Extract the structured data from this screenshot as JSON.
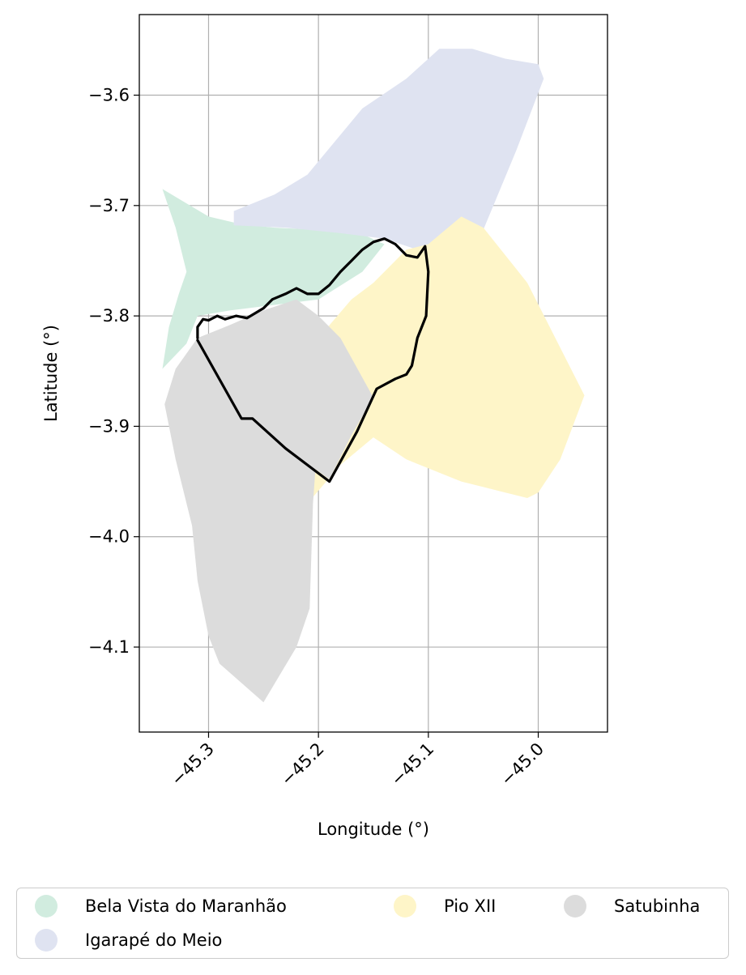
{
  "chart_data": {
    "type": "map",
    "xlabel": "Longitude (°)",
    "ylabel": "Latitude (°)",
    "xlim": [
      -45.363,
      -44.937
    ],
    "ylim": [
      -4.177,
      -3.527
    ],
    "xticks": [
      {
        "value": -45.3,
        "label": "−45.3"
      },
      {
        "value": -45.2,
        "label": "−45.2"
      },
      {
        "value": -45.1,
        "label": "−45.1"
      },
      {
        "value": -45.0,
        "label": "−45.0"
      }
    ],
    "yticks": [
      {
        "value": -3.6,
        "label": "−3.6"
      },
      {
        "value": -3.7,
        "label": "−3.7"
      },
      {
        "value": -3.8,
        "label": "−3.8"
      },
      {
        "value": -3.9,
        "label": "−3.9"
      },
      {
        "value": -4.0,
        "label": "−4.0"
      },
      {
        "value": -4.1,
        "label": "−4.1"
      }
    ],
    "grid": true,
    "legend_position": "bottom",
    "regions": [
      {
        "name": "Bela Vista do Maranhão",
        "color": "#d1ecdf",
        "outline": [
          [
            -45.342,
            -3.685
          ],
          [
            -45.3,
            -3.71
          ],
          [
            -45.27,
            -3.717
          ],
          [
            -45.24,
            -3.72
          ],
          [
            -45.2,
            -3.722
          ],
          [
            -45.16,
            -3.726
          ],
          [
            -45.14,
            -3.735
          ],
          [
            -45.16,
            -3.76
          ],
          [
            -45.2,
            -3.785
          ],
          [
            -45.24,
            -3.79
          ],
          [
            -45.28,
            -3.795
          ],
          [
            -45.31,
            -3.8
          ],
          [
            -45.32,
            -3.825
          ],
          [
            -45.342,
            -3.848
          ],
          [
            -45.336,
            -3.81
          ],
          [
            -45.327,
            -3.78
          ],
          [
            -45.32,
            -3.76
          ],
          [
            -45.33,
            -3.72
          ]
        ]
      },
      {
        "name": "Igarapé do Meio",
        "color": "#dfe3f1",
        "outline": [
          [
            -45.277,
            -3.705
          ],
          [
            -45.24,
            -3.69
          ],
          [
            -45.21,
            -3.672
          ],
          [
            -45.19,
            -3.648
          ],
          [
            -45.16,
            -3.612
          ],
          [
            -45.12,
            -3.585
          ],
          [
            -45.09,
            -3.558
          ],
          [
            -45.06,
            -3.558
          ],
          [
            -45.03,
            -3.567
          ],
          [
            -45.0,
            -3.572
          ],
          [
            -44.995,
            -3.585
          ],
          [
            -45.02,
            -3.65
          ],
          [
            -45.05,
            -3.722
          ],
          [
            -45.08,
            -3.728
          ],
          [
            -45.11,
            -3.74
          ],
          [
            -45.14,
            -3.73
          ],
          [
            -45.18,
            -3.725
          ],
          [
            -45.23,
            -3.72
          ],
          [
            -45.277,
            -3.718
          ]
        ]
      },
      {
        "name": "Pio XII",
        "color": "#fef5c8",
        "outline": [
          [
            -45.1,
            -3.735
          ],
          [
            -45.07,
            -3.71
          ],
          [
            -45.05,
            -3.72
          ],
          [
            -45.01,
            -3.77
          ],
          [
            -44.958,
            -3.872
          ],
          [
            -44.98,
            -3.93
          ],
          [
            -45.0,
            -3.96
          ],
          [
            -45.01,
            -3.965
          ],
          [
            -45.03,
            -3.96
          ],
          [
            -45.05,
            -3.955
          ],
          [
            -45.07,
            -3.95
          ],
          [
            -45.095,
            -3.94
          ],
          [
            -45.12,
            -3.93
          ],
          [
            -45.15,
            -3.91
          ],
          [
            -45.18,
            -3.935
          ],
          [
            -45.21,
            -3.97
          ],
          [
            -45.208,
            -4.03
          ],
          [
            -45.218,
            -4.03
          ],
          [
            -45.2,
            -3.82
          ],
          [
            -45.17,
            -3.785
          ],
          [
            -45.15,
            -3.77
          ],
          [
            -45.12,
            -3.74
          ]
        ]
      },
      {
        "name": "Satubinha",
        "color": "#dcdcdc",
        "outline": [
          [
            -45.31,
            -3.82
          ],
          [
            -45.29,
            -3.86
          ],
          [
            -45.26,
            -3.893
          ],
          [
            -45.24,
            -3.912
          ],
          [
            -45.19,
            -3.948
          ],
          [
            -45.17,
            -3.908
          ],
          [
            -45.15,
            -3.874
          ],
          [
            -45.18,
            -3.82
          ],
          [
            -45.2,
            -3.8
          ],
          [
            -45.22,
            -3.785
          ],
          [
            -45.25,
            -3.795
          ],
          [
            -45.28,
            -3.808
          ],
          [
            -45.31,
            -3.82
          ],
          [
            -45.33,
            -3.848
          ],
          [
            -45.34,
            -3.88
          ],
          [
            -45.33,
            -3.93
          ],
          [
            -45.315,
            -3.99
          ],
          [
            -45.31,
            -4.04
          ],
          [
            -45.3,
            -4.09
          ],
          [
            -45.29,
            -4.115
          ],
          [
            -45.25,
            -4.15
          ],
          [
            -45.22,
            -4.1
          ],
          [
            -45.208,
            -4.065
          ],
          [
            -45.205,
            -3.97
          ],
          [
            -45.2,
            -3.9
          ],
          [
            -45.2,
            -3.82
          ]
        ]
      }
    ],
    "boundary": {
      "color": "#000000",
      "path": [
        [
          -45.31,
          -3.82
        ],
        [
          -45.31,
          -3.81
        ],
        [
          -45.305,
          -3.803
        ],
        [
          -45.3,
          -3.804
        ],
        [
          -45.292,
          -3.8
        ],
        [
          -45.285,
          -3.803
        ],
        [
          -45.275,
          -3.8
        ],
        [
          -45.265,
          -3.802
        ],
        [
          -45.25,
          -3.793
        ],
        [
          -45.242,
          -3.785
        ],
        [
          -45.23,
          -3.78
        ],
        [
          -45.22,
          -3.775
        ],
        [
          -45.21,
          -3.78
        ],
        [
          -45.2,
          -3.78
        ],
        [
          -45.19,
          -3.772
        ],
        [
          -45.18,
          -3.76
        ],
        [
          -45.17,
          -3.75
        ],
        [
          -45.16,
          -3.74
        ],
        [
          -45.15,
          -3.733
        ],
        [
          -45.14,
          -3.73
        ],
        [
          -45.13,
          -3.735
        ],
        [
          -45.12,
          -3.745
        ],
        [
          -45.11,
          -3.747
        ],
        [
          -45.103,
          -3.737
        ],
        [
          -45.1,
          -3.76
        ],
        [
          -45.102,
          -3.8
        ],
        [
          -45.11,
          -3.82
        ],
        [
          -45.115,
          -3.845
        ],
        [
          -45.12,
          -3.853
        ],
        [
          -45.13,
          -3.857
        ],
        [
          -45.147,
          -3.866
        ],
        [
          -45.165,
          -3.905
        ],
        [
          -45.19,
          -3.95
        ],
        [
          -45.23,
          -3.92
        ],
        [
          -45.26,
          -3.893
        ],
        [
          -45.27,
          -3.893
        ],
        [
          -45.31,
          -3.822
        ]
      ]
    }
  },
  "legend": {
    "items": [
      {
        "label": "Bela Vista do Maranhão",
        "color": "#d1ecdf"
      },
      {
        "label": "Igarapé do Meio",
        "color": "#dfe3f1"
      },
      {
        "label": "Pio XII",
        "color": "#fef5c8"
      },
      {
        "label": "Satubinha",
        "color": "#dcdcdc"
      }
    ]
  }
}
